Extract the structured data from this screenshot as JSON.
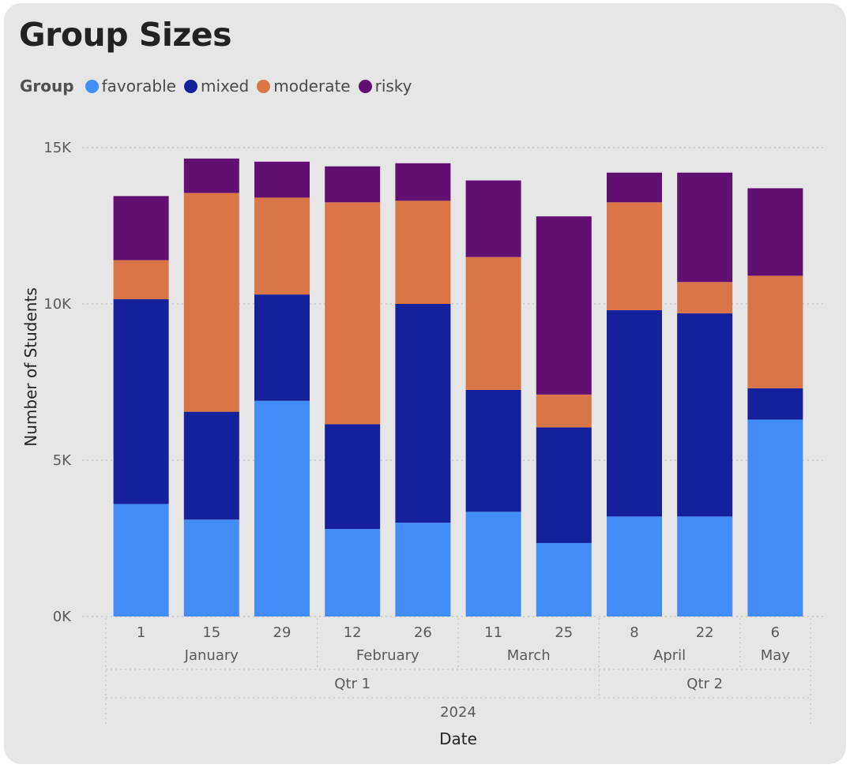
{
  "title": "Group Sizes",
  "legend": {
    "title": "Group",
    "items": [
      {
        "label": "favorable",
        "color": "#418cf7"
      },
      {
        "label": "mixed",
        "color": "#15209b"
      },
      {
        "label": "moderate",
        "color": "#d97546"
      },
      {
        "label": "risky",
        "color": "#620f72"
      }
    ]
  },
  "chart_data": {
    "type": "bar",
    "stacked": true,
    "title": "Group Sizes",
    "xlabel": "Date",
    "ylabel": "Number of Students",
    "ylim": [
      0,
      15000
    ],
    "yticks": [
      {
        "value": 0,
        "label": "0K"
      },
      {
        "value": 5000,
        "label": "5K"
      },
      {
        "value": 10000,
        "label": "10K"
      },
      {
        "value": 15000,
        "label": "15K"
      }
    ],
    "grid": true,
    "legend_position": "top-left",
    "categories": [
      "1",
      "15",
      "29",
      "12",
      "26",
      "11",
      "25",
      "8",
      "22",
      "6"
    ],
    "x_hierarchy": {
      "months": [
        {
          "label": "January",
          "span": 3
        },
        {
          "label": "February",
          "span": 2
        },
        {
          "label": "March",
          "span": 2
        },
        {
          "label": "April",
          "span": 2
        },
        {
          "label": "May",
          "span": 1
        }
      ],
      "quarters": [
        {
          "label": "Qtr 1",
          "span": 7
        },
        {
          "label": "Qtr 2",
          "span": 3
        }
      ],
      "years": [
        {
          "label": "2024",
          "span": 10
        }
      ]
    },
    "series": [
      {
        "name": "favorable",
        "color": "#418cf7",
        "values": [
          3600,
          3100,
          6900,
          2800,
          3000,
          3350,
          2350,
          3200,
          3200,
          6300
        ]
      },
      {
        "name": "mixed",
        "color": "#15209b",
        "values": [
          6550,
          3450,
          3400,
          3350,
          7000,
          3900,
          3700,
          6600,
          6500,
          1000
        ]
      },
      {
        "name": "moderate",
        "color": "#d97546",
        "values": [
          1250,
          7000,
          3100,
          7100,
          3300,
          4250,
          1050,
          3450,
          1000,
          3600
        ]
      },
      {
        "name": "risky",
        "color": "#620f72",
        "values": [
          2050,
          1100,
          1150,
          1150,
          1200,
          2450,
          5700,
          950,
          3500,
          2800
        ]
      }
    ]
  }
}
